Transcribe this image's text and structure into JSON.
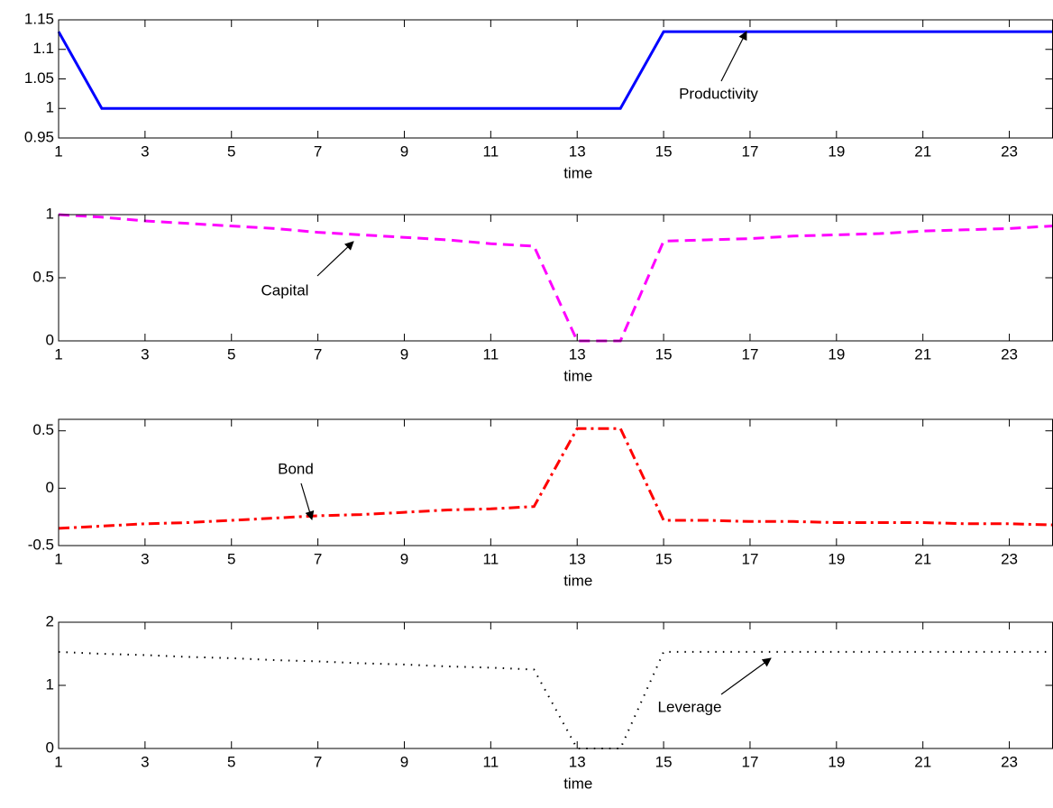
{
  "chart_data": [
    {
      "type": "line",
      "x": [
        1,
        2,
        3,
        4,
        5,
        6,
        7,
        8,
        9,
        10,
        11,
        12,
        13,
        14,
        15,
        16,
        17,
        18,
        19,
        20,
        21,
        22,
        23,
        24
      ],
      "series": [
        {
          "color": "#0000ff",
          "line_style": "solid",
          "values": [
            1.13,
            1,
            1,
            1,
            1,
            1,
            1,
            1,
            1,
            1,
            1,
            1,
            1,
            1,
            1.13,
            1.13,
            1.13,
            1.13,
            1.13,
            1.13,
            1.13,
            1.13,
            1.13,
            1.13
          ]
        }
      ],
      "annotation": "Productivity",
      "xlabel": "time",
      "xlim": [
        1,
        24
      ],
      "xticks": [
        1,
        3,
        5,
        7,
        9,
        11,
        13,
        15,
        17,
        19,
        21,
        23
      ],
      "ylim": [
        0.95,
        1.15
      ],
      "yticks": [
        0.95,
        1,
        1.05,
        1.1,
        1.15
      ]
    },
    {
      "type": "line",
      "x": [
        1,
        2,
        3,
        4,
        5,
        6,
        7,
        8,
        9,
        10,
        11,
        12,
        13,
        14,
        15,
        16,
        17,
        18,
        19,
        20,
        21,
        22,
        23,
        24
      ],
      "series": [
        {
          "color": "#ff00ff",
          "line_style": "dashed",
          "values": [
            1.0,
            0.98,
            0.95,
            0.93,
            0.91,
            0.89,
            0.86,
            0.84,
            0.82,
            0.8,
            0.77,
            0.75,
            0,
            0,
            0.79,
            0.8,
            0.81,
            0.83,
            0.84,
            0.85,
            0.87,
            0.88,
            0.89,
            0.91
          ]
        }
      ],
      "annotation": "Capital",
      "xlabel": "time",
      "xlim": [
        1,
        24
      ],
      "xticks": [
        1,
        3,
        5,
        7,
        9,
        11,
        13,
        15,
        17,
        19,
        21,
        23
      ],
      "ylim": [
        0,
        1
      ],
      "yticks": [
        0,
        0.5,
        1
      ]
    },
    {
      "type": "line",
      "x": [
        1,
        2,
        3,
        4,
        5,
        6,
        7,
        8,
        9,
        10,
        11,
        12,
        13,
        14,
        15,
        16,
        17,
        18,
        19,
        20,
        21,
        22,
        23,
        24
      ],
      "series": [
        {
          "color": "#ff0000",
          "line_style": "dashdot",
          "values": [
            -0.35,
            -0.33,
            -0.31,
            -0.3,
            -0.28,
            -0.26,
            -0.24,
            -0.23,
            -0.21,
            -0.19,
            -0.18,
            -0.16,
            0.52,
            0.52,
            -0.28,
            -0.28,
            -0.29,
            -0.29,
            -0.3,
            -0.3,
            -0.3,
            -0.31,
            -0.31,
            -0.32
          ]
        }
      ],
      "annotation": "Bond",
      "xlabel": "time",
      "xlim": [
        1,
        24
      ],
      "xticks": [
        1,
        3,
        5,
        7,
        9,
        11,
        13,
        15,
        17,
        19,
        21,
        23
      ],
      "ylim": [
        -0.5,
        0.6
      ],
      "yticks": [
        -0.5,
        0,
        0.5
      ]
    },
    {
      "type": "line",
      "x": [
        1,
        2,
        3,
        4,
        5,
        6,
        7,
        8,
        9,
        10,
        11,
        12,
        13,
        14,
        15,
        16,
        17,
        18,
        19,
        20,
        21,
        22,
        23,
        24
      ],
      "series": [
        {
          "color": "#000000",
          "line_style": "dotted",
          "values": [
            1.53,
            1.5,
            1.48,
            1.45,
            1.43,
            1.4,
            1.38,
            1.35,
            1.33,
            1.3,
            1.28,
            1.25,
            0,
            0,
            1.53,
            1.53,
            1.53,
            1.53,
            1.53,
            1.53,
            1.53,
            1.53,
            1.53,
            1.53
          ]
        }
      ],
      "annotation": "Leverage",
      "xlabel": "time",
      "xlim": [
        1,
        24
      ],
      "xticks": [
        1,
        3,
        5,
        7,
        9,
        11,
        13,
        15,
        17,
        19,
        21,
        23
      ],
      "ylim": [
        0,
        2
      ],
      "yticks": [
        0,
        1,
        2
      ]
    }
  ]
}
